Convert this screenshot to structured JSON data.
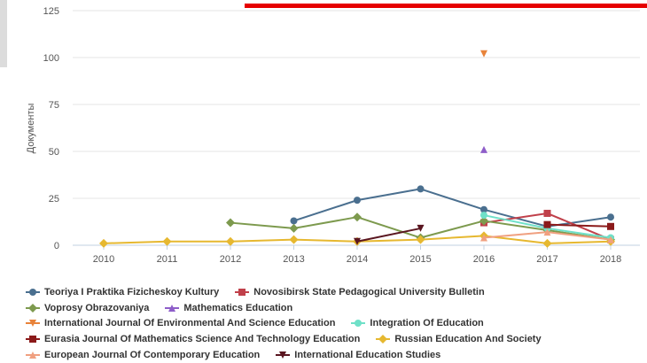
{
  "chart_data": {
    "type": "line",
    "title": "",
    "ylabel": "Документы",
    "xlabel": "",
    "ylim": [
      0,
      125
    ],
    "yticks": [
      0,
      25,
      50,
      75,
      100,
      125
    ],
    "categories": [
      "2010",
      "2011",
      "2012",
      "2013",
      "2014",
      "2015",
      "2016",
      "2017",
      "2018"
    ],
    "grid": "horizontal",
    "legend_position": "bottom",
    "series": [
      {
        "name": "Teoriya I Praktika Fizicheskoy Kultury",
        "color": "#4a6f8f",
        "marker": "circle",
        "values": [
          null,
          null,
          null,
          13,
          24,
          30,
          19,
          10,
          15
        ]
      },
      {
        "name": "Novosibirsk State Pedagogical University Bulletin",
        "color": "#c0404a",
        "marker": "square",
        "values": [
          null,
          null,
          null,
          null,
          null,
          null,
          12,
          17,
          3
        ]
      },
      {
        "name": "Voprosy Obrazovaniya",
        "color": "#7d9a4e",
        "marker": "diamond",
        "values": [
          null,
          null,
          12,
          9,
          15,
          4,
          13,
          8,
          3
        ]
      },
      {
        "name": "Mathematics Education",
        "color": "#8e5ec9",
        "marker": "triangle",
        "values": [
          null,
          null,
          null,
          null,
          null,
          null,
          51,
          null,
          null
        ]
      },
      {
        "name": "International Journal Of Environmental And Science Education",
        "color": "#e8833a",
        "marker": "triangle-down",
        "values": [
          null,
          null,
          null,
          null,
          null,
          null,
          102,
          null,
          null
        ]
      },
      {
        "name": "Integration Of Education",
        "color": "#6fe0c8",
        "marker": "circle",
        "values": [
          null,
          null,
          null,
          null,
          null,
          null,
          16,
          9,
          4
        ]
      },
      {
        "name": "Eurasia Journal Of Mathematics Science And Technology Education",
        "color": "#8b1a1a",
        "marker": "square",
        "values": [
          null,
          null,
          null,
          null,
          null,
          null,
          null,
          11,
          10
        ]
      },
      {
        "name": "Russian Education And Society",
        "color": "#e6b830",
        "marker": "diamond",
        "values": [
          1,
          2,
          2,
          3,
          2,
          3,
          5,
          1,
          2
        ]
      },
      {
        "name": "European Journal Of Contemporary Education",
        "color": "#f0a080",
        "marker": "triangle",
        "values": [
          null,
          null,
          null,
          null,
          null,
          null,
          4,
          7,
          3
        ]
      },
      {
        "name": "International Education Studies",
        "color": "#5a1620",
        "marker": "triangle-down",
        "values": [
          null,
          null,
          null,
          null,
          2,
          9,
          null,
          null,
          null
        ]
      }
    ]
  }
}
